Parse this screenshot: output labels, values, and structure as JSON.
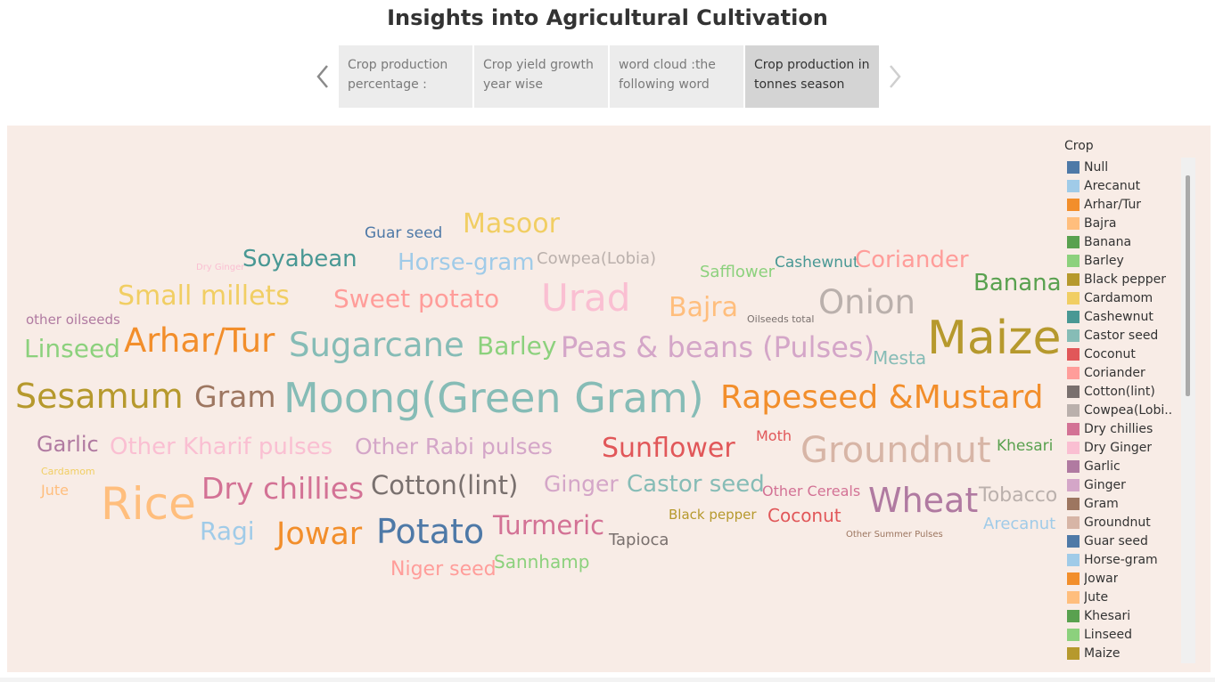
{
  "header": {
    "title": "Insights into Agricultural Cultivation"
  },
  "story": {
    "tabs": [
      {
        "label": "Crop production percentage :"
      },
      {
        "label": "Crop yield growth year wise"
      },
      {
        "label": "word cloud :the following word"
      },
      {
        "label": "Crop production in tonnes season"
      }
    ],
    "active_index": 3
  },
  "word_cloud": [
    {
      "text": "Guar seed",
      "color": "#4e79a7"
    },
    {
      "text": "Masoor",
      "color": "#f1ce63"
    },
    {
      "text": "Dry Ginger",
      "color": "#fabfd2"
    },
    {
      "text": "Soyabean",
      "color": "#499894"
    },
    {
      "text": "Horse-gram",
      "color": "#a0cbe8"
    },
    {
      "text": "Cowpea(Lobia)",
      "color": "#bab0ac"
    },
    {
      "text": "Safflower",
      "color": "#8cd17d"
    },
    {
      "text": "Cashewnut",
      "color": "#499894"
    },
    {
      "text": "Coriander",
      "color": "#ff9d9a"
    },
    {
      "text": "Banana",
      "color": "#59a14f"
    },
    {
      "text": "Small millets",
      "color": "#f1ce63"
    },
    {
      "text": "Sweet potato",
      "color": "#ff9d9a"
    },
    {
      "text": "Urad",
      "color": "#fabfd2"
    },
    {
      "text": "Bajra",
      "color": "#ffbe7d"
    },
    {
      "text": "Oilseeds total",
      "color": "#79706e"
    },
    {
      "text": "Onion",
      "color": "#bab0ac"
    },
    {
      "text": "other oilseeds",
      "color": "#b07aa1"
    },
    {
      "text": "Maize",
      "color": "#b6992d"
    },
    {
      "text": "Linseed",
      "color": "#8cd17d"
    },
    {
      "text": "Arhar/Tur",
      "color": "#f28e2b"
    },
    {
      "text": "Sugarcane",
      "color": "#86bcb6"
    },
    {
      "text": "Barley",
      "color": "#8cd17d"
    },
    {
      "text": "Peas & beans (Pulses)",
      "color": "#d4a6c8"
    },
    {
      "text": "Mesta",
      "color": "#86bcb6"
    },
    {
      "text": "Sesamum",
      "color": "#b6992d"
    },
    {
      "text": "Gram",
      "color": "#9d7660"
    },
    {
      "text": "Moong(Green Gram)",
      "color": "#86bcb6"
    },
    {
      "text": "Rapeseed &Mustard",
      "color": "#f28e2b"
    },
    {
      "text": "Garlic",
      "color": "#b07aa1"
    },
    {
      "text": "Other Kharif pulses",
      "color": "#fabfd2"
    },
    {
      "text": "Other Rabi pulses",
      "color": "#d4a6c8"
    },
    {
      "text": "Sunflower",
      "color": "#e15759"
    },
    {
      "text": "Moth",
      "color": "#e15759"
    },
    {
      "text": "Groundnut",
      "color": "#d7b5a6"
    },
    {
      "text": "Khesari",
      "color": "#59a14f"
    },
    {
      "text": "Cardamom",
      "color": "#f1ce63"
    },
    {
      "text": "Jute",
      "color": "#ffbe7d"
    },
    {
      "text": "Rice",
      "color": "#ffbe7d"
    },
    {
      "text": "Dry chillies",
      "color": "#d37295"
    },
    {
      "text": "Cotton(lint)",
      "color": "#79706e"
    },
    {
      "text": "Ginger",
      "color": "#d4a6c8"
    },
    {
      "text": "Castor seed",
      "color": "#86bcb6"
    },
    {
      "text": "Other Cereals",
      "color": "#d37295"
    },
    {
      "text": "Wheat",
      "color": "#b07aa1"
    },
    {
      "text": "Tobacco",
      "color": "#bab0ac"
    },
    {
      "text": "Ragi",
      "color": "#a0cbe8"
    },
    {
      "text": "Jowar",
      "color": "#f28e2b"
    },
    {
      "text": "Potato",
      "color": "#4e79a7"
    },
    {
      "text": "Turmeric",
      "color": "#d37295"
    },
    {
      "text": "Tapioca",
      "color": "#79706e"
    },
    {
      "text": "Black pepper",
      "color": "#b6992d"
    },
    {
      "text": "Coconut",
      "color": "#e15759"
    },
    {
      "text": "Other Summer Pulses",
      "color": "#9d7660"
    },
    {
      "text": "Arecanut",
      "color": "#a0cbe8"
    },
    {
      "text": "Niger seed",
      "color": "#ff9d9a"
    },
    {
      "text": "Sannhamp",
      "color": "#8cd17d"
    }
  ],
  "legend": {
    "title": "Crop",
    "items": [
      {
        "label": "Null",
        "color": "#4e79a7"
      },
      {
        "label": "Arecanut",
        "color": "#a0cbe8"
      },
      {
        "label": "Arhar/Tur",
        "color": "#f28e2b"
      },
      {
        "label": "Bajra",
        "color": "#ffbe7d"
      },
      {
        "label": "Banana",
        "color": "#59a14f"
      },
      {
        "label": "Barley",
        "color": "#8cd17d"
      },
      {
        "label": "Black pepper",
        "color": "#b6992d"
      },
      {
        "label": "Cardamom",
        "color": "#f1ce63"
      },
      {
        "label": "Cashewnut",
        "color": "#499894"
      },
      {
        "label": "Castor seed",
        "color": "#86bcb6"
      },
      {
        "label": "Coconut",
        "color": "#e15759"
      },
      {
        "label": "Coriander",
        "color": "#ff9d9a"
      },
      {
        "label": "Cotton(lint)",
        "color": "#79706e"
      },
      {
        "label": "Cowpea(Lobi..",
        "color": "#bab0ac"
      },
      {
        "label": "Dry chillies",
        "color": "#d37295"
      },
      {
        "label": "Dry Ginger",
        "color": "#fabfd2"
      },
      {
        "label": "Garlic",
        "color": "#b07aa1"
      },
      {
        "label": "Ginger",
        "color": "#d4a6c8"
      },
      {
        "label": "Gram",
        "color": "#9d7660"
      },
      {
        "label": "Groundnut",
        "color": "#d7b5a6"
      },
      {
        "label": "Guar seed",
        "color": "#4e79a7"
      },
      {
        "label": "Horse-gram",
        "color": "#a0cbe8"
      },
      {
        "label": "Jowar",
        "color": "#f28e2b"
      },
      {
        "label": "Jute",
        "color": "#ffbe7d"
      },
      {
        "label": "Khesari",
        "color": "#59a14f"
      },
      {
        "label": "Linseed",
        "color": "#8cd17d"
      },
      {
        "label": "Maize",
        "color": "#b6992d"
      }
    ]
  }
}
